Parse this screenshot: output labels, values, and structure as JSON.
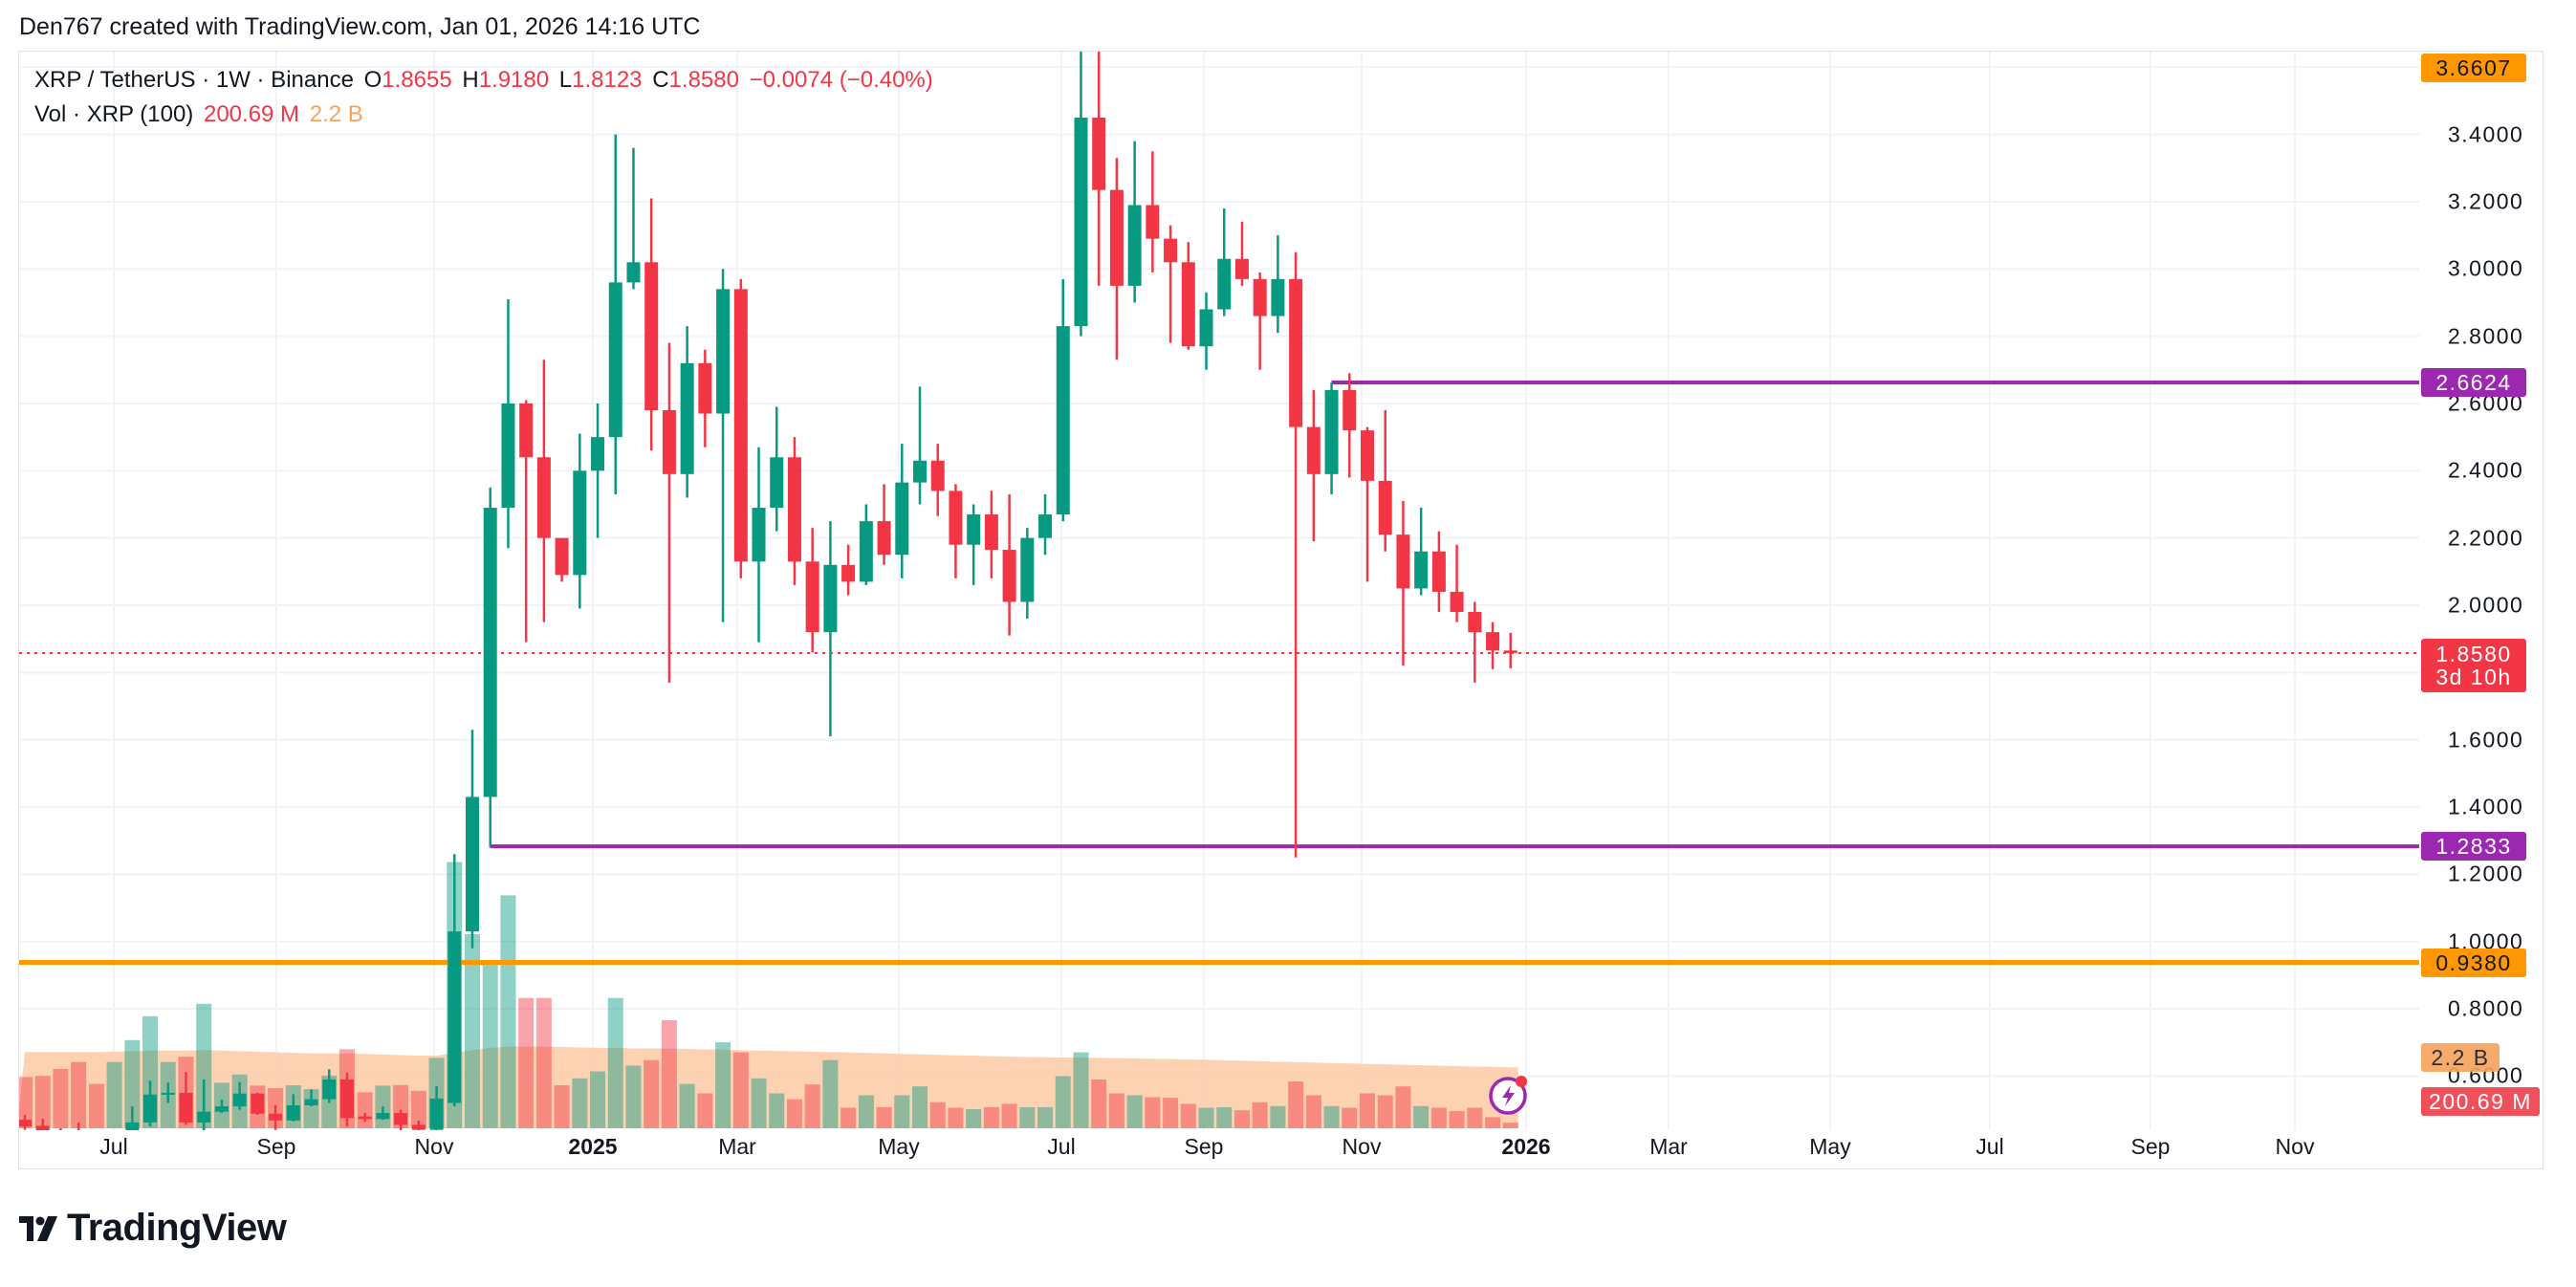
{
  "header": {
    "attribution": "Den767 created with TradingView.com, Jan 01, 2026 14:16 UTC"
  },
  "legend": {
    "symbol": "XRP / TetherUS · 1W · Binance",
    "o_label": "O",
    "o": "1.8655",
    "h_label": "H",
    "h": "1.9180",
    "l_label": "L",
    "l": "1.8123",
    "c_label": "C",
    "c": "1.8580",
    "change": "−0.0074 (−0.40%)",
    "vol_label": "Vol · XRP (100)",
    "vol_value": "200.69 M",
    "vol_ma": "2.2 B"
  },
  "price_axis": {
    "ticks": [
      "3.4000",
      "3.2000",
      "3.0000",
      "2.8000",
      "2.6000",
      "2.4000",
      "2.2000",
      "2.0000",
      "1.6000",
      "1.4000",
      "1.2000",
      "1.0000",
      "0.8000",
      "0.6000"
    ]
  },
  "time_axis": [
    {
      "label": "Jul",
      "bold": false
    },
    {
      "label": "Sep",
      "bold": false
    },
    {
      "label": "Nov",
      "bold": false
    },
    {
      "label": "2025",
      "bold": true
    },
    {
      "label": "Mar",
      "bold": false
    },
    {
      "label": "May",
      "bold": false
    },
    {
      "label": "Jul",
      "bold": false
    },
    {
      "label": "Sep",
      "bold": false
    },
    {
      "label": "Nov",
      "bold": false
    },
    {
      "label": "2026",
      "bold": true
    },
    {
      "label": "Mar",
      "bold": false
    },
    {
      "label": "May",
      "bold": false
    },
    {
      "label": "Jul",
      "bold": false
    },
    {
      "label": "Sep",
      "bold": false
    },
    {
      "label": "Nov",
      "bold": false
    }
  ],
  "markers": {
    "high": {
      "value": "3.6607",
      "color": "#ff9800"
    },
    "resistance": {
      "value": "2.6624",
      "color": "#9c27b0"
    },
    "support": {
      "value": "1.2833",
      "color": "#9c27b0"
    },
    "level": {
      "value": "0.9380",
      "color": "#ff9800"
    },
    "last": {
      "value": "1.8580",
      "countdown": "3d 10h",
      "color": "#f23645"
    },
    "vol_ma": {
      "value": "2.2 B",
      "color": "#f7a35c"
    },
    "vol_last": {
      "value": "200.69 M",
      "color": "#f0505a"
    }
  },
  "colors": {
    "up": "#089981",
    "down": "#f23645",
    "grid": "#f0f3fa",
    "vol_ma_area": "#fdcaa6"
  },
  "footer": {
    "logo": "TradingView"
  },
  "chart_data": {
    "type": "candlestick",
    "interval": "1W",
    "symbol": "XRP / TetherUS",
    "ylim": [
      0.42,
      3.66
    ],
    "grid": true,
    "fields": [
      "open",
      "high",
      "low",
      "close",
      "volume_B",
      "volume_ma_B"
    ],
    "candles": [
      [
        0.47,
        0.485,
        0.44,
        0.45,
        1.85,
        2.75
      ],
      [
        0.452,
        0.473,
        0.42,
        0.435,
        1.89,
        2.75
      ],
      [
        0.437,
        0.445,
        0.425,
        0.43,
        2.14,
        2.75
      ],
      [
        0.43,
        0.462,
        0.41,
        0.42,
        2.39,
        2.75
      ],
      [
        0.42,
        0.42,
        0.38,
        0.4,
        1.6,
        2.75
      ],
      [
        0.4,
        0.43,
        0.38,
        0.41,
        2.39,
        2.76
      ],
      [
        0.41,
        0.51,
        0.4,
        0.462,
        3.18,
        2.78
      ],
      [
        0.462,
        0.586,
        0.45,
        0.545,
        4.04,
        2.8
      ],
      [
        0.545,
        0.58,
        0.52,
        0.55,
        2.39,
        2.8
      ],
      [
        0.55,
        0.612,
        0.455,
        0.462,
        2.58,
        2.8
      ],
      [
        0.462,
        0.59,
        0.42,
        0.494,
        4.49,
        2.82
      ],
      [
        0.494,
        0.53,
        0.49,
        0.51,
        1.64,
        2.8
      ],
      [
        0.51,
        0.582,
        0.5,
        0.548,
        1.94,
        2.78
      ],
      [
        0.548,
        0.55,
        0.485,
        0.488,
        1.54,
        2.76
      ],
      [
        0.488,
        0.514,
        0.44,
        0.468,
        1.45,
        2.74
      ],
      [
        0.468,
        0.546,
        0.465,
        0.513,
        1.55,
        2.72
      ],
      [
        0.513,
        0.56,
        0.51,
        0.531,
        1.41,
        2.7
      ],
      [
        0.531,
        0.62,
        0.52,
        0.59,
        1.9,
        2.7
      ],
      [
        0.59,
        0.61,
        0.45,
        0.475,
        2.85,
        2.7
      ],
      [
        0.48,
        0.49,
        0.464,
        0.472,
        1.3,
        2.68
      ],
      [
        0.472,
        0.51,
        0.47,
        0.49,
        1.54,
        2.66
      ],
      [
        0.49,
        0.5,
        0.43,
        0.455,
        1.56,
        2.64
      ],
      [
        0.455,
        0.468,
        0.432,
        0.44,
        1.35,
        2.62
      ],
      [
        0.44,
        0.57,
        0.432,
        0.533,
        2.54,
        2.62
      ],
      [
        0.52,
        1.26,
        0.51,
        1.03,
        9.6,
        2.72
      ],
      [
        1.03,
        1.63,
        0.98,
        1.43,
        7.0,
        2.82
      ],
      [
        1.43,
        2.35,
        1.28,
        2.29,
        6.0,
        2.9
      ],
      [
        2.29,
        2.91,
        2.17,
        2.6,
        8.4,
        2.95
      ],
      [
        2.6,
        2.61,
        1.89,
        2.44,
        4.7,
        2.95
      ],
      [
        2.44,
        2.73,
        1.95,
        2.2,
        4.7,
        2.95
      ],
      [
        2.2,
        2.2,
        2.07,
        2.09,
        1.55,
        2.93
      ],
      [
        2.09,
        2.51,
        1.99,
        2.4,
        1.8,
        2.92
      ],
      [
        2.4,
        2.6,
        2.2,
        2.5,
        2.05,
        2.9
      ],
      [
        2.5,
        3.4,
        2.33,
        2.96,
        4.7,
        2.9
      ],
      [
        2.96,
        3.36,
        2.94,
        3.02,
        2.26,
        2.88
      ],
      [
        3.02,
        3.21,
        2.46,
        2.58,
        2.46,
        2.88
      ],
      [
        2.58,
        2.78,
        1.77,
        2.39,
        3.9,
        2.87
      ],
      [
        2.39,
        2.83,
        2.32,
        2.72,
        1.6,
        2.86
      ],
      [
        2.72,
        2.76,
        2.47,
        2.57,
        1.26,
        2.84
      ],
      [
        2.57,
        3.0,
        1.95,
        2.94,
        3.1,
        2.84
      ],
      [
        2.94,
        2.97,
        2.08,
        2.13,
        2.74,
        2.82
      ],
      [
        2.13,
        2.47,
        1.89,
        2.29,
        1.8,
        2.8
      ],
      [
        2.29,
        2.59,
        2.22,
        2.44,
        1.26,
        2.79
      ],
      [
        2.44,
        2.5,
        2.06,
        2.13,
        1.05,
        2.78
      ],
      [
        2.13,
        2.23,
        1.86,
        1.92,
        1.58,
        2.76
      ],
      [
        1.92,
        2.25,
        1.61,
        2.12,
        2.46,
        2.75
      ],
      [
        2.12,
        2.18,
        2.03,
        2.07,
        0.74,
        2.74
      ],
      [
        2.07,
        2.3,
        2.06,
        2.25,
        1.19,
        2.72
      ],
      [
        2.25,
        2.36,
        2.12,
        2.15,
        0.76,
        2.7
      ],
      [
        2.15,
        2.48,
        2.08,
        2.365,
        1.19,
        2.68
      ],
      [
        2.365,
        2.65,
        2.3,
        2.43,
        1.51,
        2.67
      ],
      [
        2.43,
        2.48,
        2.265,
        2.34,
        0.94,
        2.65
      ],
      [
        2.34,
        2.36,
        2.08,
        2.18,
        0.74,
        2.63
      ],
      [
        2.18,
        2.3,
        2.06,
        2.27,
        0.69,
        2.62
      ],
      [
        2.27,
        2.34,
        2.08,
        2.165,
        0.76,
        2.6
      ],
      [
        2.165,
        2.33,
        1.91,
        2.01,
        0.88,
        2.59
      ],
      [
        2.01,
        2.23,
        1.96,
        2.2,
        0.76,
        2.57
      ],
      [
        2.2,
        2.33,
        2.15,
        2.27,
        0.76,
        2.56
      ],
      [
        2.27,
        2.97,
        2.25,
        2.83,
        1.88,
        2.55
      ],
      [
        2.83,
        3.65,
        2.8,
        3.45,
        2.74,
        2.55
      ],
      [
        3.45,
        3.6607,
        2.95,
        3.235,
        1.76,
        2.54
      ],
      [
        3.235,
        3.33,
        2.73,
        2.95,
        1.26,
        2.53
      ],
      [
        2.95,
        3.38,
        2.9,
        3.19,
        1.19,
        2.52
      ],
      [
        3.19,
        3.35,
        2.99,
        3.09,
        1.12,
        2.51
      ],
      [
        3.09,
        3.13,
        2.78,
        3.02,
        1.1,
        2.5
      ],
      [
        3.02,
        3.08,
        2.76,
        2.77,
        0.88,
        2.48
      ],
      [
        2.77,
        2.93,
        2.7,
        2.88,
        0.74,
        2.47
      ],
      [
        2.88,
        3.18,
        2.86,
        3.03,
        0.76,
        2.45
      ],
      [
        3.03,
        3.14,
        2.95,
        2.97,
        0.65,
        2.44
      ],
      [
        2.97,
        2.99,
        2.7,
        2.86,
        0.94,
        2.42
      ],
      [
        2.86,
        3.1,
        2.81,
        2.97,
        0.8,
        2.4
      ],
      [
        2.97,
        3.05,
        1.25,
        2.53,
        1.69,
        2.39
      ],
      [
        2.53,
        2.64,
        2.19,
        2.39,
        1.19,
        2.37
      ],
      [
        2.39,
        2.6624,
        2.33,
        2.64,
        0.8,
        2.35
      ],
      [
        2.64,
        2.69,
        2.38,
        2.52,
        0.74,
        2.34
      ],
      [
        2.52,
        2.53,
        2.07,
        2.37,
        1.26,
        2.32
      ],
      [
        2.37,
        2.58,
        2.16,
        2.21,
        1.19,
        2.31
      ],
      [
        2.21,
        2.31,
        1.82,
        2.05,
        1.51,
        2.29
      ],
      [
        2.05,
        2.29,
        2.03,
        2.16,
        0.8,
        2.27
      ],
      [
        2.16,
        2.22,
        1.98,
        2.04,
        0.74,
        2.26
      ],
      [
        2.04,
        2.18,
        1.95,
        1.98,
        0.62,
        2.24
      ],
      [
        1.98,
        2.01,
        1.77,
        1.92,
        0.74,
        2.23
      ],
      [
        1.92,
        1.95,
        1.81,
        1.8655,
        0.4,
        2.21
      ],
      [
        1.8655,
        1.918,
        1.8123,
        1.858,
        0.20069,
        2.2
      ]
    ]
  }
}
